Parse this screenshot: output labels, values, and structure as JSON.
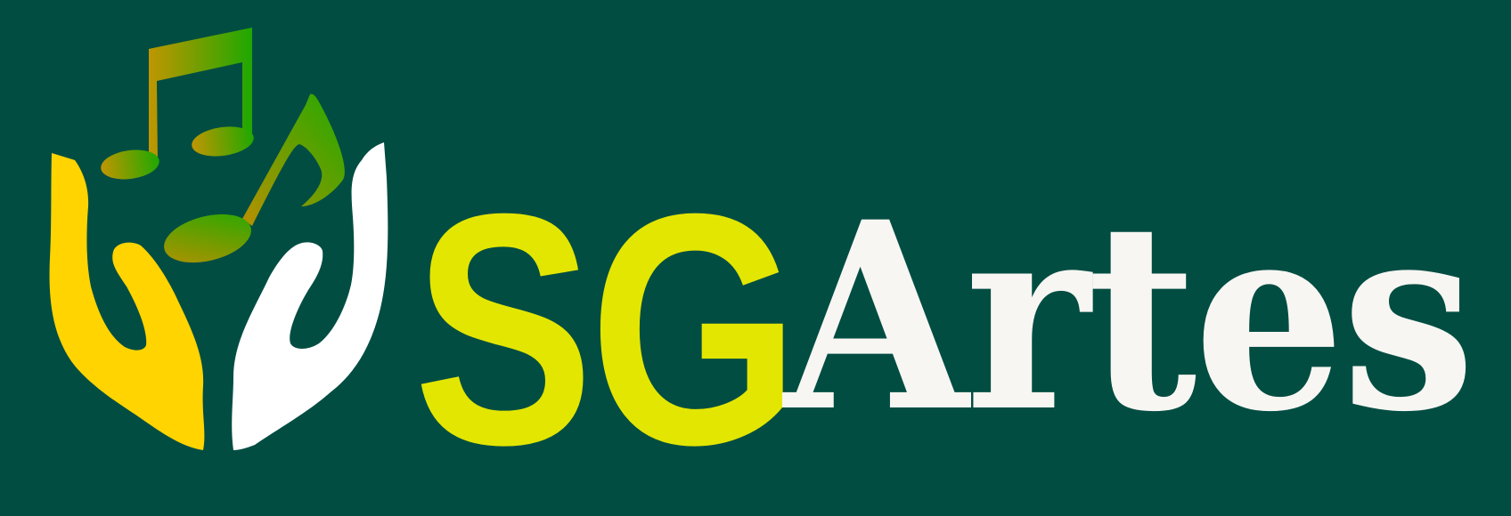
{
  "logo": {
    "icon": "hands-holding-music-notes-icon",
    "text_sg": "SG",
    "text_artes": "Artes",
    "colors": {
      "background": "#024d42",
      "sg": "#e3e600",
      "artes": "#f7f6f2",
      "left_hand": "#ffd400",
      "right_hand": "#ffffff",
      "notes_start": "#c09600",
      "notes_end": "#1fa800"
    }
  }
}
